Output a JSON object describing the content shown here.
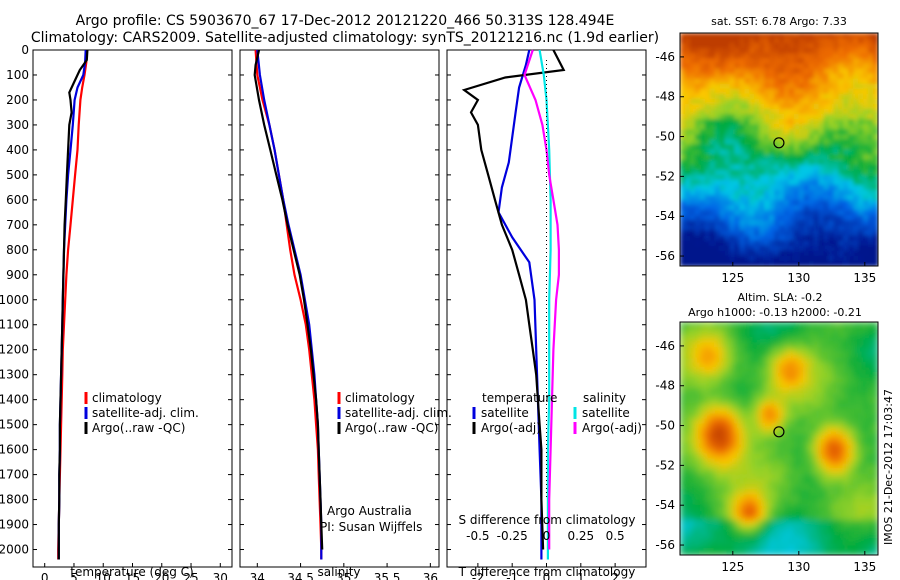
{
  "header": {
    "line1": "Argo profile: CS 5903670_67 17-Dec-2012 20121220_466 50.313S 128.494E",
    "line2": "Climatology: CARS2009. Satellite-adjusted climatology: synTS_20121216.nc (1.9d earlier)"
  },
  "colors": {
    "climatology": "#ff0000",
    "satellite": "#0000dd",
    "argo": "#000000",
    "satellite_salinity": "#00e5e5",
    "argo_salinity": "#ff00ff"
  },
  "chart_data": [
    {
      "type": "line",
      "xlabel": "temperature (deg C)",
      "ylabel": "",
      "xlim": [
        -2,
        32
      ],
      "ylim": [
        2070,
        0
      ],
      "xticks": [
        "0",
        "5",
        "10",
        "15",
        "20",
        "25",
        "30"
      ],
      "yticks": [
        "0",
        "100",
        "200",
        "300",
        "400",
        "500",
        "600",
        "700",
        "800",
        "900",
        "1000",
        "1100",
        "1200",
        "1300",
        "1400",
        "1500",
        "1600",
        "1700",
        "1800",
        "1900",
        "2000"
      ],
      "legend": [
        "climatology",
        "satellite-adj. clim.",
        "Argo(..raw -QC)"
      ],
      "series": [
        {
          "name": "climatology",
          "color": "#ff0000",
          "points": [
            [
              7.2,
              0
            ],
            [
              7.1,
              50
            ],
            [
              6.8,
              100
            ],
            [
              6.4,
              150
            ],
            [
              6.1,
              200
            ],
            [
              5.8,
              300
            ],
            [
              5.6,
              400
            ],
            [
              5.2,
              500
            ],
            [
              4.8,
              600
            ],
            [
              4.4,
              700
            ],
            [
              4.0,
              800
            ],
            [
              3.7,
              900
            ],
            [
              3.5,
              1000
            ],
            [
              3.3,
              1100
            ],
            [
              3.1,
              1200
            ],
            [
              3.0,
              1300
            ],
            [
              2.9,
              1400
            ],
            [
              2.8,
              1500
            ],
            [
              2.7,
              1600
            ],
            [
              2.6,
              1700
            ],
            [
              2.5,
              1800
            ],
            [
              2.4,
              1900
            ],
            [
              2.3,
              2000
            ],
            [
              2.3,
              2040
            ]
          ]
        },
        {
          "name": "satellite-adj. clim.",
          "color": "#0000dd",
          "points": [
            [
              7.0,
              0
            ],
            [
              6.9,
              50
            ],
            [
              6.6,
              100
            ],
            [
              5.6,
              150
            ],
            [
              5.1,
              200
            ],
            [
              4.8,
              300
            ],
            [
              4.4,
              400
            ],
            [
              4.0,
              500
            ],
            [
              3.7,
              600
            ],
            [
              3.5,
              700
            ],
            [
              3.3,
              800
            ],
            [
              3.2,
              900
            ],
            [
              3.1,
              1000
            ],
            [
              3.0,
              1100
            ],
            [
              2.9,
              1200
            ],
            [
              2.8,
              1300
            ],
            [
              2.7,
              1400
            ],
            [
              2.6,
              1500
            ],
            [
              2.6,
              1600
            ],
            [
              2.5,
              1700
            ],
            [
              2.5,
              1800
            ],
            [
              2.4,
              1900
            ],
            [
              2.4,
              2000
            ],
            [
              2.4,
              2040
            ]
          ]
        },
        {
          "name": "Argo(..raw -QC)",
          "color": "#000000",
          "points": [
            [
              7.3,
              0
            ],
            [
              7.2,
              40
            ],
            [
              6.0,
              80
            ],
            [
              4.8,
              140
            ],
            [
              4.2,
              170
            ],
            [
              4.4,
              200
            ],
            [
              4.6,
              250
            ],
            [
              4.2,
              300
            ],
            [
              4.0,
              400
            ],
            [
              3.8,
              500
            ],
            [
              3.6,
              600
            ],
            [
              3.4,
              700
            ],
            [
              3.3,
              800
            ],
            [
              3.2,
              900
            ],
            [
              3.1,
              1000
            ],
            [
              3.0,
              1100
            ],
            [
              2.9,
              1200
            ],
            [
              2.8,
              1300
            ],
            [
              2.7,
              1400
            ],
            [
              2.6,
              1500
            ],
            [
              2.6,
              1600
            ],
            [
              2.5,
              1700
            ],
            [
              2.5,
              1800
            ],
            [
              2.4,
              1900
            ],
            [
              2.4,
              2000
            ],
            [
              2.4,
              2040
            ]
          ]
        }
      ]
    },
    {
      "type": "line",
      "xlabel": "salinity",
      "xlim": [
        33.8,
        36.1
      ],
      "ylim": [
        2070,
        0
      ],
      "xticks": [
        "34",
        "34.5",
        "35",
        "35.5",
        "36"
      ],
      "legend": [
        "climatology",
        "satellite-adj. clim.",
        "Argo(..raw -QC)"
      ],
      "annotation": [
        "Argo Australia",
        "PI: Susan Wijffels"
      ],
      "series": [
        {
          "name": "climatology",
          "color": "#ff0000",
          "points": [
            [
              33.98,
              0
            ],
            [
              34.0,
              100
            ],
            [
              34.06,
              200
            ],
            [
              34.14,
              300
            ],
            [
              34.2,
              400
            ],
            [
              34.25,
              500
            ],
            [
              34.3,
              600
            ],
            [
              34.34,
              700
            ],
            [
              34.38,
              800
            ],
            [
              34.43,
              900
            ],
            [
              34.5,
              1000
            ],
            [
              34.56,
              1100
            ],
            [
              34.6,
              1200
            ],
            [
              34.63,
              1300
            ],
            [
              34.66,
              1400
            ],
            [
              34.68,
              1500
            ],
            [
              34.7,
              1600
            ],
            [
              34.71,
              1700
            ],
            [
              34.72,
              1800
            ],
            [
              34.73,
              1900
            ],
            [
              34.74,
              2000
            ],
            [
              34.74,
              2040
            ]
          ]
        },
        {
          "name": "satellite-adj. clim.",
          "color": "#0000dd",
          "points": [
            [
              34.0,
              0
            ],
            [
              34.03,
              100
            ],
            [
              34.08,
              200
            ],
            [
              34.14,
              300
            ],
            [
              34.2,
              400
            ],
            [
              34.25,
              500
            ],
            [
              34.3,
              600
            ],
            [
              34.36,
              700
            ],
            [
              34.43,
              800
            ],
            [
              34.5,
              900
            ],
            [
              34.55,
              1000
            ],
            [
              34.6,
              1100
            ],
            [
              34.63,
              1200
            ],
            [
              34.66,
              1300
            ],
            [
              34.68,
              1400
            ],
            [
              34.7,
              1500
            ],
            [
              34.71,
              1600
            ],
            [
              34.72,
              1700
            ],
            [
              34.73,
              1800
            ],
            [
              34.74,
              1900
            ],
            [
              34.74,
              2000
            ],
            [
              34.74,
              2040
            ]
          ]
        },
        {
          "name": "Argo(..raw -QC)",
          "color": "#000000",
          "points": [
            [
              34.02,
              0
            ],
            [
              33.98,
              60
            ],
            [
              33.97,
              100
            ],
            [
              34.02,
              200
            ],
            [
              34.08,
              300
            ],
            [
              34.15,
              400
            ],
            [
              34.22,
              500
            ],
            [
              34.29,
              600
            ],
            [
              34.35,
              700
            ],
            [
              34.42,
              800
            ],
            [
              34.49,
              900
            ],
            [
              34.54,
              1000
            ],
            [
              34.58,
              1100
            ],
            [
              34.62,
              1200
            ],
            [
              34.65,
              1300
            ],
            [
              34.68,
              1400
            ],
            [
              34.7,
              1500
            ],
            [
              34.71,
              1600
            ],
            [
              34.72,
              1700
            ],
            [
              34.73,
              1800
            ],
            [
              34.74,
              1900
            ],
            [
              34.75,
              2000
            ]
          ]
        }
      ]
    },
    {
      "type": "line",
      "xlabel": "T difference from climatology",
      "xlabel_top": "S difference from climatology",
      "xlim": [
        -2.9,
        2.9
      ],
      "ylim": [
        2070,
        0
      ],
      "xticks": [
        "-2",
        "-1",
        "0",
        "1",
        "2"
      ],
      "xticks_top": [
        "-0.5",
        "-0.25",
        "0",
        "0.25",
        "0.5"
      ],
      "legend": {
        "temperature": [
          "satellite",
          "Argo(-adj)"
        ],
        "salinity": [
          "satellite",
          "Argo(-adj)"
        ]
      },
      "legend_titles": [
        "temperature",
        "salinity"
      ],
      "series": [
        {
          "name": "satellite",
          "group": "temperature",
          "color": "#0000dd",
          "points": [
            [
              -0.5,
              0
            ],
            [
              -0.6,
              60
            ],
            [
              -0.8,
              150
            ],
            [
              -0.9,
              250
            ],
            [
              -1.0,
              350
            ],
            [
              -1.1,
              450
            ],
            [
              -1.3,
              550
            ],
            [
              -1.4,
              650
            ],
            [
              -1.0,
              750
            ],
            [
              -0.5,
              850
            ],
            [
              -0.35,
              1000
            ],
            [
              -0.3,
              1200
            ],
            [
              -0.25,
              1400
            ],
            [
              -0.2,
              1600
            ],
            [
              -0.15,
              1800
            ],
            [
              -0.15,
              2000
            ],
            [
              -0.15,
              2040
            ]
          ]
        },
        {
          "name": "Argo(-adj)",
          "group": "temperature",
          "color": "#000000",
          "points": [
            [
              0.2,
              0
            ],
            [
              0.5,
              80
            ],
            [
              -1.2,
              110
            ],
            [
              -2.4,
              160
            ],
            [
              -2.0,
              200
            ],
            [
              -2.2,
              250
            ],
            [
              -2.0,
              300
            ],
            [
              -1.9,
              400
            ],
            [
              -1.7,
              500
            ],
            [
              -1.5,
              600
            ],
            [
              -1.3,
              700
            ],
            [
              -1.0,
              800
            ],
            [
              -0.8,
              900
            ],
            [
              -0.6,
              1000
            ],
            [
              -0.5,
              1100
            ],
            [
              -0.4,
              1200
            ],
            [
              -0.3,
              1300
            ],
            [
              -0.25,
              1400
            ],
            [
              -0.2,
              1500
            ],
            [
              -0.15,
              1600
            ],
            [
              -0.15,
              1800
            ],
            [
              -0.1,
              2000
            ]
          ]
        },
        {
          "name": "satellite",
          "group": "salinity",
          "color": "#00e5e5",
          "points": [
            [
              -0.05,
              0
            ],
            [
              -0.02,
              100
            ],
            [
              0.0,
              200
            ],
            [
              0.02,
              400
            ],
            [
              0.03,
              600
            ],
            [
              0.03,
              800
            ],
            [
              0.02,
              1000
            ],
            [
              0.02,
              1200
            ],
            [
              0.02,
              1400
            ],
            [
              0.01,
              1600
            ],
            [
              0.01,
              1800
            ],
            [
              0.01,
              2000
            ],
            [
              0.01,
              2040
            ]
          ]
        },
        {
          "name": "Argo(-adj)",
          "group": "salinity",
          "color": "#ff00ff",
          "points": [
            [
              -0.1,
              0
            ],
            [
              -0.16,
              100
            ],
            [
              -0.08,
              200
            ],
            [
              -0.03,
              300
            ],
            [
              0.0,
              400
            ],
            [
              0.02,
              500
            ],
            [
              0.05,
              600
            ],
            [
              0.08,
              700
            ],
            [
              0.09,
              800
            ],
            [
              0.09,
              900
            ],
            [
              0.07,
              1000
            ],
            [
              0.05,
              1200
            ],
            [
              0.04,
              1400
            ],
            [
              0.03,
              1600
            ],
            [
              0.02,
              1800
            ],
            [
              0.02,
              2000
            ]
          ]
        }
      ]
    },
    {
      "type": "heatmap",
      "title": "sat. SST: 6.78 Argo: 7.33",
      "xlim": [
        121,
        136
      ],
      "ylim": [
        -56.5,
        -44.8
      ],
      "xticks": [
        "125",
        "130",
        "135"
      ],
      "yticks": [
        "-46",
        "-48",
        "-50",
        "-52",
        "-54",
        "-56"
      ],
      "marker": {
        "lon": 128.494,
        "lat": -50.313
      }
    },
    {
      "type": "heatmap",
      "title": "Altim. SLA: -0.2",
      "subtitle": "Argo h1000: -0.13 h2000: -0.21",
      "xlim": [
        121,
        136
      ],
      "ylim": [
        -56.5,
        -44.8
      ],
      "xticks": [
        "125",
        "130",
        "135"
      ],
      "yticks": [
        "-46",
        "-48",
        "-50",
        "-52",
        "-54",
        "-56"
      ],
      "marker": {
        "lon": 128.494,
        "lat": -50.313
      }
    }
  ],
  "side_label": "IMOS 21-Dec-2012 17:03:47"
}
